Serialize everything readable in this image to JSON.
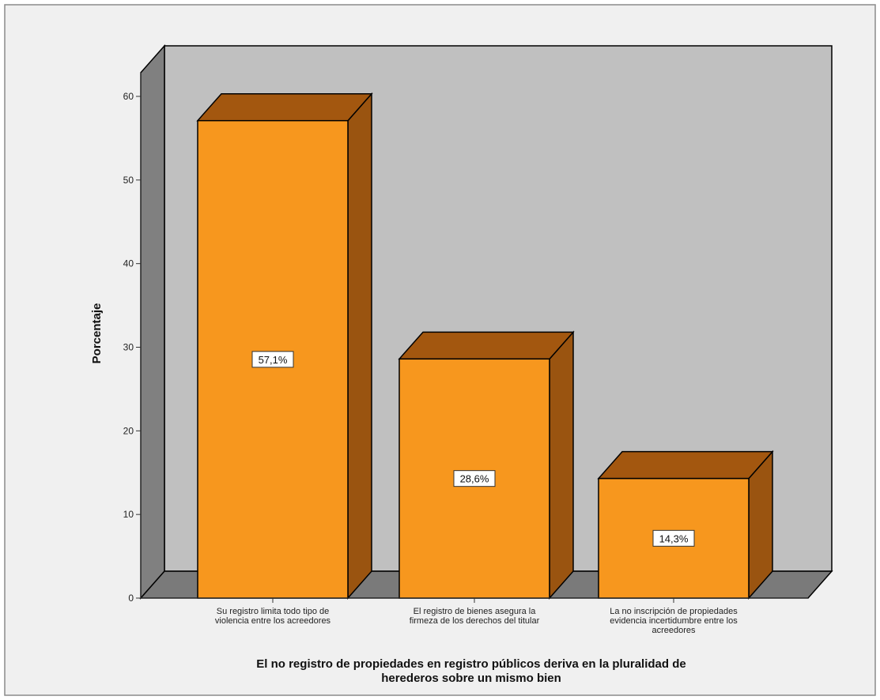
{
  "colors": {
    "page_bg": "#ffffff",
    "frame_bg": "#f0f0f0",
    "frame_border": "#8a8a8a",
    "wall": "#c0c0c0",
    "side_wall": "#808080",
    "floor": "#7a7a7a",
    "bar_front": "#f7971e",
    "bar_top": "#a3570f",
    "bar_side": "#9a5410",
    "outline": "#000000"
  },
  "chart_data": {
    "type": "bar",
    "style": "3d",
    "categories": [
      [
        "Su registro limita todo tipo de",
        "violencia entre los acreedores"
      ],
      [
        "El registro de bienes asegura la",
        "firmeza de los derechos del titular"
      ],
      [
        "La no inscripción de propiedades",
        "evidencia incertidumbre entre los",
        "acreedores"
      ]
    ],
    "values": [
      57.1,
      28.6,
      14.3
    ],
    "data_labels": [
      "57,1%",
      "28,6%",
      "14,3%"
    ],
    "ylabel": "Porcentaje",
    "xlabel": [
      "El no registro de propiedades en registro públicos deriva en la pluralidad de",
      "herederos sobre un mismo bien"
    ],
    "yticks": [
      0,
      10,
      20,
      30,
      40,
      50,
      60
    ],
    "ylim": [
      0,
      60
    ],
    "grid": false,
    "legend": "none"
  }
}
